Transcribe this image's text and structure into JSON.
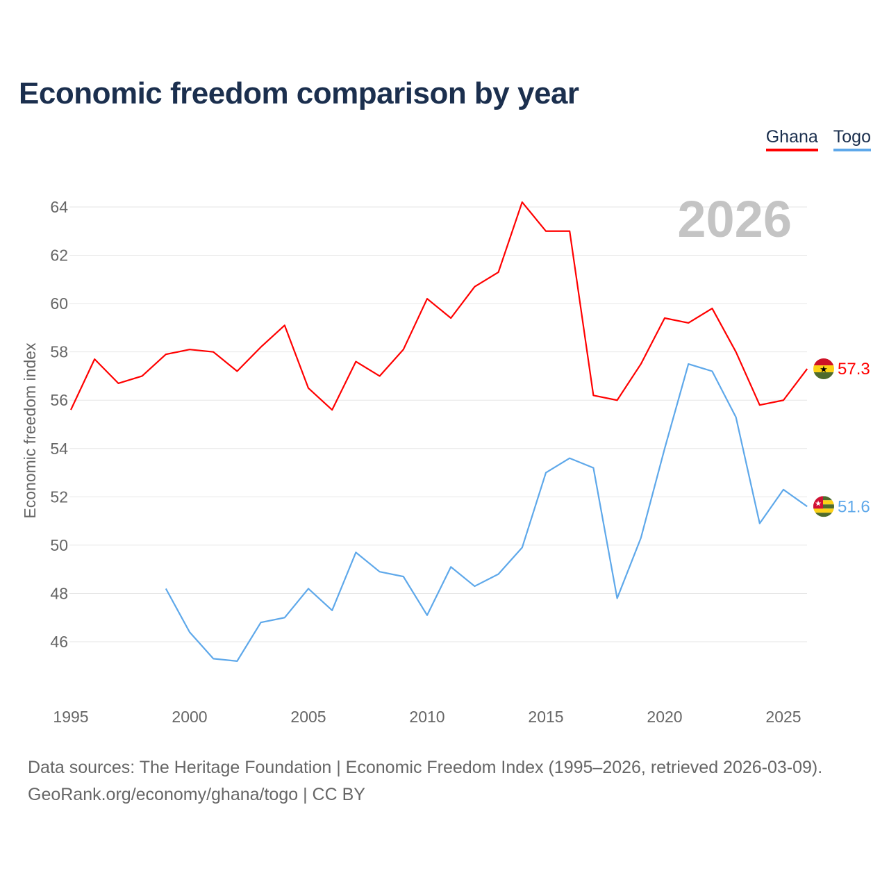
{
  "title": "Economic freedom comparison by year",
  "footer": {
    "line1": "Data sources: The Heritage Foundation | Economic Freedom Index (1995–2026, retrieved 2026-03-09).",
    "line2": "GeoRank.org/economy/ghana/togo | CC BY"
  },
  "chart_data": {
    "type": "line",
    "title": "Economic freedom comparison by year",
    "ylabel": "Economic freedom index",
    "xlabel": "",
    "year_label": "2026",
    "ylim": [
      44,
      64.5
    ],
    "xlim": [
      1995,
      2026
    ],
    "yticks": [
      46,
      48,
      50,
      52,
      54,
      56,
      58,
      60,
      62,
      64
    ],
    "xticks": [
      1995,
      2000,
      2005,
      2010,
      2015,
      2020,
      2025
    ],
    "legend_position": "top-right",
    "grid": true,
    "series": [
      {
        "name": "Ghana",
        "color": "#ff0000",
        "end_label": "57.3",
        "x": [
          1995,
          1996,
          1997,
          1998,
          1999,
          2000,
          2001,
          2002,
          2003,
          2004,
          2005,
          2006,
          2007,
          2008,
          2009,
          2010,
          2011,
          2012,
          2013,
          2014,
          2015,
          2016,
          2017,
          2018,
          2019,
          2020,
          2021,
          2022,
          2023,
          2024,
          2025,
          2026
        ],
        "values": [
          55.6,
          57.7,
          56.7,
          57.0,
          57.9,
          58.1,
          58.0,
          57.2,
          58.2,
          59.1,
          56.5,
          55.6,
          57.6,
          57.0,
          58.1,
          60.2,
          59.4,
          60.7,
          61.3,
          64.2,
          63.0,
          63.0,
          56.2,
          56.0,
          57.5,
          59.4,
          59.2,
          59.8,
          58.0,
          55.8,
          56.0,
          57.3
        ]
      },
      {
        "name": "Togo",
        "color": "#5ea8ea",
        "end_label": "51.6",
        "x": [
          1999,
          2000,
          2001,
          2002,
          2003,
          2004,
          2005,
          2006,
          2007,
          2008,
          2009,
          2010,
          2011,
          2012,
          2013,
          2014,
          2015,
          2016,
          2017,
          2018,
          2019,
          2020,
          2021,
          2022,
          2023,
          2024,
          2025,
          2026
        ],
        "values": [
          48.2,
          46.4,
          45.3,
          45.2,
          46.8,
          47.0,
          48.2,
          47.3,
          49.7,
          48.9,
          48.7,
          47.1,
          49.1,
          48.3,
          48.8,
          49.9,
          53.0,
          53.6,
          53.2,
          47.8,
          50.3,
          54.0,
          57.5,
          57.2,
          55.3,
          50.9,
          52.3,
          51.6
        ]
      }
    ]
  }
}
